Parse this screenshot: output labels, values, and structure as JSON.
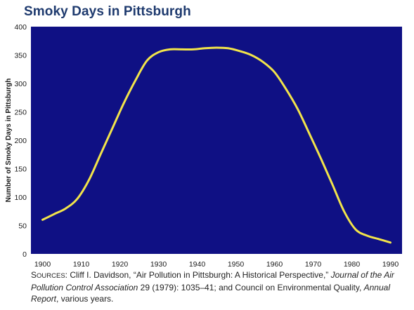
{
  "chart_data": {
    "type": "line",
    "title": "Smoky Days in Pittsburgh",
    "ylabel": "Number of Smoky Days in Pittsburgh",
    "xlabel": "",
    "xlim": [
      1897,
      1993
    ],
    "ylim": [
      0,
      400
    ],
    "x_ticks": [
      1900,
      1910,
      1920,
      1930,
      1940,
      1950,
      1960,
      1970,
      1980,
      1990
    ],
    "y_ticks": [
      0,
      50,
      100,
      150,
      200,
      250,
      300,
      350,
      400
    ],
    "grid": false,
    "legend": "none",
    "series": [
      {
        "x": [
          1900,
          1903,
          1906,
          1909,
          1912,
          1915,
          1918,
          1921,
          1924,
          1927,
          1930,
          1933,
          1936,
          1939,
          1942,
          1945,
          1948,
          1951,
          1954,
          1957,
          1960,
          1963,
          1966,
          1969,
          1972,
          1975,
          1978,
          1981,
          1984,
          1987,
          1990
        ],
        "values": [
          60,
          70,
          80,
          97,
          130,
          175,
          220,
          265,
          305,
          340,
          355,
          360,
          360,
          360,
          362,
          363,
          362,
          357,
          350,
          338,
          320,
          290,
          255,
          212,
          168,
          122,
          75,
          43,
          32,
          26,
          20
        ]
      }
    ],
    "colors": {
      "plot_bg": "#0f1084",
      "line": "#f2e44a"
    }
  },
  "source": {
    "lead_first": "S",
    "lead_rest": "ources",
    "colon": ": ",
    "text1": "Cliff I. Davidson, “Air Pollution in Pittsburgh: A Historical Perspective,” ",
    "journal": "Journal of the Air Pollution Control Association",
    "text2": " 29 (1979): 1035–41; and Council on Environmental Quality, ",
    "report": "Annual Report",
    "text3": ", various years."
  }
}
